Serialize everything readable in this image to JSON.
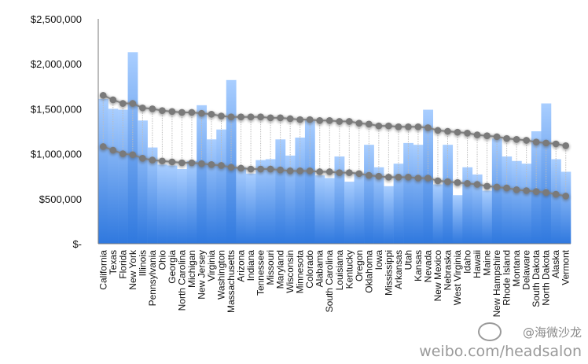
{
  "chart_data": {
    "type": "bar",
    "title": "",
    "xlabel": "",
    "ylabel": "",
    "ylim": [
      0,
      2500000
    ],
    "yticks": [
      0,
      500000,
      1000000,
      1500000,
      2000000,
      2500000
    ],
    "ytick_labels": [
      "$-",
      "$500,000",
      "$1,000,000",
      "$1,500,000",
      "$2,000,000",
      "$2,500,000"
    ],
    "grid": false,
    "legend": "none",
    "categories": [
      "California",
      "Texas",
      "Florida",
      "New York",
      "Illinois",
      "Pennsylvania",
      "Ohio",
      "Georgia",
      "North Carolina",
      "Michigan",
      "New Jersey",
      "Virginia",
      "Washington",
      "Massachusetts",
      "Arizona",
      "Indiana",
      "Tennessee",
      "Missouri",
      "Maryland",
      "Wisconsin",
      "Minnesota",
      "Colorado",
      "Alabama",
      "South Carolina",
      "Louisiana",
      "Kentucky",
      "Oregon",
      "Oklahoma",
      "Iowa",
      "Mississippi",
      "Arkansas",
      "Utah",
      "Kansas",
      "Nevada",
      "New Mexico",
      "Nebraska",
      "West Virginia",
      "Idaho",
      "Hawaii",
      "Maine",
      "New Hampshire",
      "Rhode Island",
      "Montana",
      "Delaware",
      "South Dakota",
      "North Dakota",
      "Alaska",
      "Vermont"
    ],
    "series": [
      {
        "values": [
          1610000,
          1500000,
          1490000,
          2130000,
          1370000,
          1070000,
          880000,
          870000,
          830000,
          920000,
          1540000,
          1160000,
          1270000,
          1820000,
          850000,
          780000,
          930000,
          940000,
          1160000,
          980000,
          1180000,
          1380000,
          760000,
          730000,
          970000,
          690000,
          780000,
          1100000,
          850000,
          640000,
          890000,
          1120000,
          1100000,
          1490000,
          660000,
          1100000,
          540000,
          850000,
          770000,
          590000,
          1170000,
          970000,
          920000,
          890000,
          1250000,
          1560000,
          940000,
          800000
        ]
      },
      {
        "values": [
          1650000,
          1600000,
          1560000,
          1560000,
          1510000,
          1500000,
          1480000,
          1470000,
          1460000,
          1460000,
          1450000,
          1440000,
          1420000,
          1410000,
          1410000,
          1410000,
          1410000,
          1400000,
          1400000,
          1390000,
          1380000,
          1380000,
          1370000,
          1370000,
          1360000,
          1360000,
          1340000,
          1330000,
          1310000,
          1310000,
          1300000,
          1300000,
          1300000,
          1290000,
          1260000,
          1250000,
          1240000,
          1230000,
          1210000,
          1200000,
          1190000,
          1170000,
          1160000,
          1150000,
          1130000,
          1120000,
          1110000,
          1090000
        ]
      },
      {
        "values": [
          1080000,
          1040000,
          1000000,
          990000,
          950000,
          930000,
          920000,
          910000,
          900000,
          900000,
          890000,
          880000,
          870000,
          850000,
          840000,
          830000,
          830000,
          830000,
          820000,
          810000,
          810000,
          810000,
          800000,
          800000,
          790000,
          790000,
          780000,
          760000,
          750000,
          740000,
          740000,
          740000,
          730000,
          730000,
          700000,
          690000,
          680000,
          670000,
          660000,
          640000,
          630000,
          620000,
          600000,
          590000,
          580000,
          570000,
          550000,
          530000
        ]
      }
    ],
    "colors": {
      "bar_top": "#a9ceff",
      "bar_bottom": "#2f78de",
      "dot": "#7a7a7a",
      "connector": "#bcbcbc"
    }
  },
  "watermark": {
    "handle": "@海微沙龙",
    "url": "weibo.com/headsalon"
  }
}
